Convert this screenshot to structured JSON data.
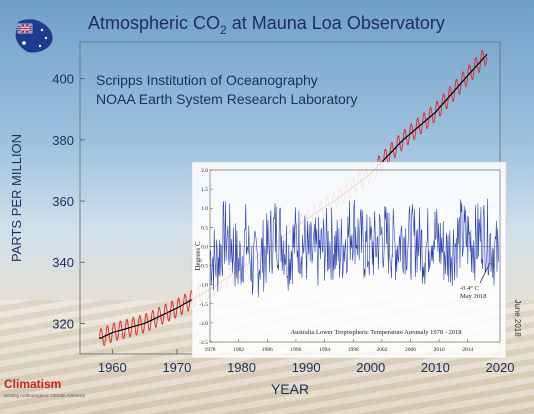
{
  "main_chart": {
    "title_prefix": "Atmospheric CO",
    "title_sub": "2",
    "title_suffix": " at Mauna Loa Observatory",
    "source_line1": "Scripps Institution of Oceanography",
    "source_line2": "NOAA Earth System Research Laboratory",
    "ylabel": "PARTS PER MILLION",
    "xlabel": "YEAR",
    "date_label": "June 2018"
  },
  "inset_chart": {
    "title": "Australia Lower Tropospheric Temperature Anomaly 1978 - 2018",
    "ylabel": "Degrees C",
    "annotation_line1": "-0.4° C",
    "annotation_line2": "May 2018"
  },
  "branding": {
    "name": "Climatism",
    "tagline": "Busting Anthropogenic Climate Alarmism"
  },
  "colors": {
    "co2_seasonal": "#e03030",
    "co2_trend": "#000000",
    "anomaly": "#2b3fb0",
    "brand": "#d2201c"
  },
  "chart_data": [
    {
      "type": "line",
      "title": "Atmospheric CO2 at Mauna Loa Observatory",
      "xlabel": "YEAR",
      "ylabel": "PARTS PER MILLION",
      "xlim": [
        1955,
        2020
      ],
      "ylim": [
        310,
        412
      ],
      "x_ticks": [
        1960,
        1970,
        1980,
        1990,
        2000,
        2010,
        2020
      ],
      "y_ticks": [
        320,
        340,
        360,
        380,
        400
      ],
      "series": [
        {
          "x": [
            1958,
            1960,
            1965,
            1970,
            1975,
            1980,
            1985,
            1990,
            1995,
            2000,
            2005,
            2010,
            2015,
            2018
          ],
          "values": [
            315,
            317,
            320,
            325,
            331,
            338,
            346,
            354,
            361,
            369,
            380,
            389,
            401,
            408
          ]
        }
      ],
      "seasonal_amplitude_ppm": 3
    },
    {
      "type": "line",
      "title": "Australia Lower Tropospheric Temperature Anomaly 1978 - 2018",
      "ylabel": "Degrees C",
      "xlim": [
        1978,
        2018.5
      ],
      "ylim": [
        -2.5,
        2.0
      ],
      "x_ticks": [
        1978,
        1982,
        1986,
        1990,
        1994,
        1998,
        2002,
        2006,
        2010,
        2014
      ],
      "y_ticks": [
        -2.5,
        -2.0,
        -1.5,
        -1.0,
        -0.5,
        0.0,
        0.5,
        1.0,
        1.5,
        2.0
      ],
      "series": [
        {
          "x": [
            1978,
            1979,
            1980,
            1981,
            1982,
            1983,
            1984,
            1985,
            1986,
            1987,
            1988,
            1989,
            1990,
            1991,
            1992,
            1993,
            1994,
            1995,
            1996,
            1997,
            1998,
            1999,
            2000,
            2001,
            2002,
            2003,
            2004,
            2005,
            2006,
            2007,
            2008,
            2009,
            2010,
            2011,
            2012,
            2013,
            2014,
            2015,
            2016,
            2017,
            2018.4
          ],
          "values": [
            -0.2,
            -0.4,
            0.3,
            0.1,
            -0.5,
            0.2,
            -0.6,
            -0.3,
            -0.1,
            0.4,
            0.3,
            -0.2,
            0.2,
            0.1,
            -0.3,
            -0.2,
            0.0,
            0.1,
            -0.2,
            0.2,
            0.6,
            0.1,
            -0.1,
            0.0,
            0.3,
            0.1,
            0.0,
            0.3,
            0.1,
            0.2,
            -0.1,
            0.4,
            0.1,
            -0.2,
            0.0,
            0.3,
            0.2,
            0.1,
            0.4,
            0.2,
            -0.4
          ]
        }
      ],
      "monthly_spread_c": 1.0
    }
  ]
}
